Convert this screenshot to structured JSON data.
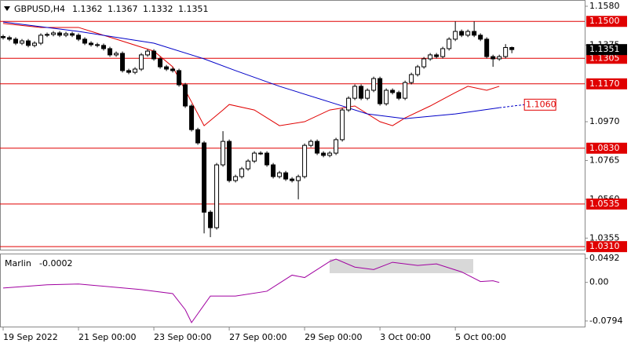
{
  "chart_data": [
    {
      "type": "candlestick",
      "title": "GBPUSD,H4",
      "xlim": [
        -0.5,
        92.6
      ],
      "xticks": [
        {
          "value": 0,
          "label": "19 Sep 2022"
        },
        {
          "value": 12,
          "label": "21 Sep 00:00"
        },
        {
          "value": 24,
          "label": "23 Sep 00:00"
        },
        {
          "value": 36,
          "label": "27 Sep 00:00"
        },
        {
          "value": 48,
          "label": "29 Sep 00:00"
        },
        {
          "value": 60,
          "label": "3 Oct 00:00"
        },
        {
          "value": 72,
          "label": "5 Oct 00:00"
        }
      ],
      "ylim": [
        1.0294,
        1.1613
      ],
      "yticks": [
        {
          "value": 1.158,
          "label": "1.1580"
        },
        {
          "value": 1.1375,
          "label": "1.1375"
        },
        {
          "value": 1.097,
          "label": "1.0970"
        },
        {
          "value": 1.0765,
          "label": "1.0765"
        },
        {
          "value": 1.056,
          "label": "1.0560"
        },
        {
          "value": 1.0355,
          "label": "1.0355"
        }
      ],
      "open": [
        1.142,
        1.1414,
        1.1406,
        1.1385,
        1.1397,
        1.1373,
        1.1385,
        1.1427,
        1.1431,
        1.1439,
        1.1427,
        1.1435,
        1.1427,
        1.1406,
        1.1385,
        1.1377,
        1.1373,
        1.1356,
        1.1323,
        1.1331,
        1.124,
        1.1231,
        1.1248,
        1.1323,
        1.1343,
        1.1302,
        1.126,
        1.1248,
        1.124,
        1.1165,
        1.1053,
        1.0928,
        1.0858,
        1.0492,
        1.041,
        1.0742,
        1.0866,
        1.0659,
        1.068,
        1.0721,
        1.0762,
        1.0804,
        1.0804,
        1.0742,
        1.068,
        1.07,
        1.0667,
        1.0659,
        1.068,
        1.0845,
        1.0866,
        1.0804,
        1.0792,
        1.0804,
        1.0875,
        1.1032,
        1.1094,
        1.1157,
        1.1094,
        1.1136,
        1.1198,
        1.1065,
        1.1136,
        1.1124,
        1.1094,
        1.1177,
        1.1219,
        1.126,
        1.1302,
        1.1323,
        1.1314,
        1.1356,
        1.1406,
        1.1447,
        1.1427,
        1.1447,
        1.1427,
        1.1406,
        1.1314,
        1.1302,
        1.1314,
        1.1362
      ],
      "high": [
        1.143,
        1.1424,
        1.1416,
        1.1407,
        1.1407,
        1.1395,
        1.1437,
        1.1441,
        1.1449,
        1.1449,
        1.1445,
        1.1445,
        1.1437,
        1.1416,
        1.1395,
        1.1387,
        1.1383,
        1.1366,
        1.1341,
        1.1341,
        1.125,
        1.1258,
        1.1333,
        1.1353,
        1.1353,
        1.1312,
        1.127,
        1.1258,
        1.125,
        1.1175,
        1.1063,
        1.0938,
        1.0868,
        1.0502,
        1.0752,
        1.092,
        1.0876,
        1.069,
        1.0731,
        1.0772,
        1.0814,
        1.0814,
        1.0814,
        1.0752,
        1.071,
        1.071,
        1.0677,
        1.069,
        1.0855,
        1.0876,
        1.0876,
        1.0814,
        1.0814,
        1.0885,
        1.1042,
        1.1104,
        1.1167,
        1.1167,
        1.1146,
        1.1208,
        1.1208,
        1.1146,
        1.1146,
        1.1134,
        1.1187,
        1.1229,
        1.127,
        1.1312,
        1.1333,
        1.1333,
        1.1366,
        1.1416,
        1.15,
        1.1457,
        1.1457,
        1.15,
        1.1437,
        1.1416,
        1.1324,
        1.1324,
        1.138,
        1.1367
      ],
      "low": [
        1.1404,
        1.1396,
        1.1375,
        1.1375,
        1.1363,
        1.1363,
        1.1375,
        1.1417,
        1.1421,
        1.1417,
        1.1417,
        1.1417,
        1.1396,
        1.1375,
        1.1367,
        1.1363,
        1.1346,
        1.1313,
        1.1313,
        1.123,
        1.1221,
        1.1221,
        1.1238,
        1.1313,
        1.1292,
        1.125,
        1.1238,
        1.123,
        1.1155,
        1.1043,
        1.0918,
        1.0848,
        1.038,
        1.036,
        1.04,
        1.0732,
        1.0649,
        1.0649,
        1.067,
        1.0711,
        1.0752,
        1.0794,
        1.0732,
        1.067,
        1.067,
        1.0657,
        1.0649,
        1.056,
        1.067,
        1.0835,
        1.0794,
        1.0782,
        1.0782,
        1.0794,
        1.0865,
        1.1022,
        1.1084,
        1.1084,
        1.1084,
        1.1126,
        1.1055,
        1.1055,
        1.1114,
        1.1084,
        1.1084,
        1.1167,
        1.1209,
        1.125,
        1.1292,
        1.1304,
        1.1304,
        1.1346,
        1.1396,
        1.1417,
        1.1417,
        1.1417,
        1.1396,
        1.1304,
        1.126,
        1.1292,
        1.1304,
        1.1332
      ],
      "close": [
        1.1414,
        1.1406,
        1.1385,
        1.1397,
        1.1373,
        1.1385,
        1.1427,
        1.1431,
        1.1439,
        1.1427,
        1.1435,
        1.1427,
        1.1406,
        1.1385,
        1.1377,
        1.1373,
        1.1356,
        1.1323,
        1.1331,
        1.124,
        1.1231,
        1.1248,
        1.1323,
        1.1343,
        1.1302,
        1.126,
        1.1248,
        1.124,
        1.1165,
        1.1053,
        1.0928,
        1.0858,
        1.0492,
        1.041,
        1.0742,
        1.0866,
        1.0659,
        1.068,
        1.0721,
        1.0762,
        1.0804,
        1.0804,
        1.0742,
        1.068,
        1.07,
        1.0667,
        1.0659,
        1.068,
        1.0845,
        1.0866,
        1.0804,
        1.0792,
        1.0804,
        1.0875,
        1.1032,
        1.1094,
        1.1157,
        1.1094,
        1.1136,
        1.1198,
        1.1065,
        1.1136,
        1.1124,
        1.1094,
        1.1177,
        1.1219,
        1.126,
        1.1302,
        1.1323,
        1.1314,
        1.1356,
        1.1406,
        1.1447,
        1.1427,
        1.1447,
        1.1427,
        1.1406,
        1.1314,
        1.1302,
        1.1314,
        1.1362,
        1.1351
      ],
      "overlays": [
        {
          "color": "#e00000",
          "x": [
            0,
            6,
            12,
            18,
            24,
            27,
            30,
            32,
            35,
            36,
            40,
            44,
            48,
            52,
            56,
            60,
            62,
            64,
            68,
            72,
            74,
            77,
            79
          ],
          "values": [
            1.1489,
            1.1468,
            1.1468,
            1.1406,
            1.1343,
            1.126,
            1.1074,
            1.0949,
            1.1032,
            1.1061,
            1.1032,
            1.0949,
            1.097,
            1.1032,
            1.1053,
            1.097,
            1.0949,
            1.099,
            1.1053,
            1.1124,
            1.1157,
            1.1136,
            1.1157
          ]
        },
        {
          "color": "#0000c8",
          "x": [
            0,
            12,
            24,
            32,
            37,
            44,
            52,
            58,
            64,
            72,
            79
          ],
          "values": [
            1.1497,
            1.1447,
            1.1385,
            1.1302,
            1.124,
            1.1157,
            1.1074,
            1.1011,
            1.0986,
            1.1011,
            1.1044
          ]
        }
      ],
      "projection": {
        "color": "#0000c8",
        "x": [
          79,
          83
        ],
        "values": [
          1.1044,
          1.106
        ],
        "end_label": "1.1060"
      },
      "levels_color": "#e00000",
      "levels": [
        {
          "value": 1.15,
          "label": "1.1500"
        },
        {
          "value": 1.1305,
          "label": "1.1305"
        },
        {
          "value": 1.117,
          "label": "1.1170"
        },
        {
          "value": 1.083,
          "label": "1.0830"
        },
        {
          "value": 1.0535,
          "label": "1.0535"
        },
        {
          "value": 1.031,
          "label": "1.0310"
        }
      ]
    },
    {
      "type": "line",
      "title": "Marlin",
      "color": "#a000a0",
      "x": [
        0,
        7,
        12,
        22,
        27,
        29,
        30,
        31,
        33,
        37,
        42,
        46,
        48,
        52,
        53,
        56,
        59,
        62,
        66,
        69,
        73,
        76,
        78,
        79
      ],
      "values": [
        -0.0116,
        -0.005,
        -0.0033,
        -0.0149,
        -0.0231,
        -0.0562,
        -0.0826,
        -0.0645,
        -0.0281,
        -0.0281,
        -0.0182,
        0.0149,
        0.0099,
        0.043,
        0.0479,
        0.0314,
        0.0264,
        0.0413,
        0.0347,
        0.038,
        0.0215,
        0.0017,
        0.0033,
        -0.0002
      ],
      "ylim": [
        -0.0909,
        0.0592
      ],
      "yticks": [
        {
          "value": 0.0492,
          "label": "0.0492"
        },
        {
          "value": 0,
          "label": "0.00"
        },
        {
          "value": -0.0794,
          "label": "-0.0794"
        }
      ]
    }
  ]
}
